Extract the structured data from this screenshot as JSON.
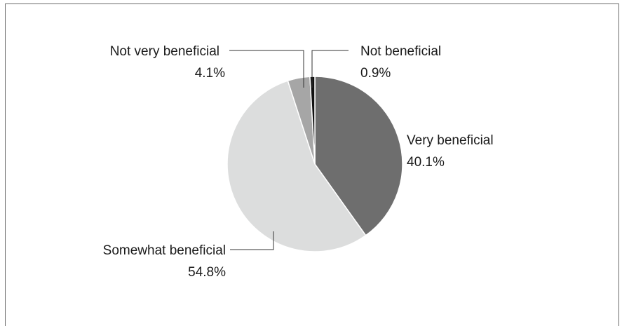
{
  "chart_data": {
    "type": "pie",
    "title": "",
    "slices": [
      {
        "label": "Very beneficial",
        "percent_text": "40.1%",
        "value": 40.1,
        "color": "#6e6e6e"
      },
      {
        "label": "Somewhat beneficial",
        "percent_text": "54.8%",
        "value": 54.8,
        "color": "#dcdddd"
      },
      {
        "label": "Not very beneficial",
        "percent_text": "4.1%",
        "value": 4.1,
        "color": "#a6a6a6"
      },
      {
        "label": "Not beneficial",
        "percent_text": "0.9%",
        "value": 0.9,
        "color": "#111111"
      }
    ]
  }
}
